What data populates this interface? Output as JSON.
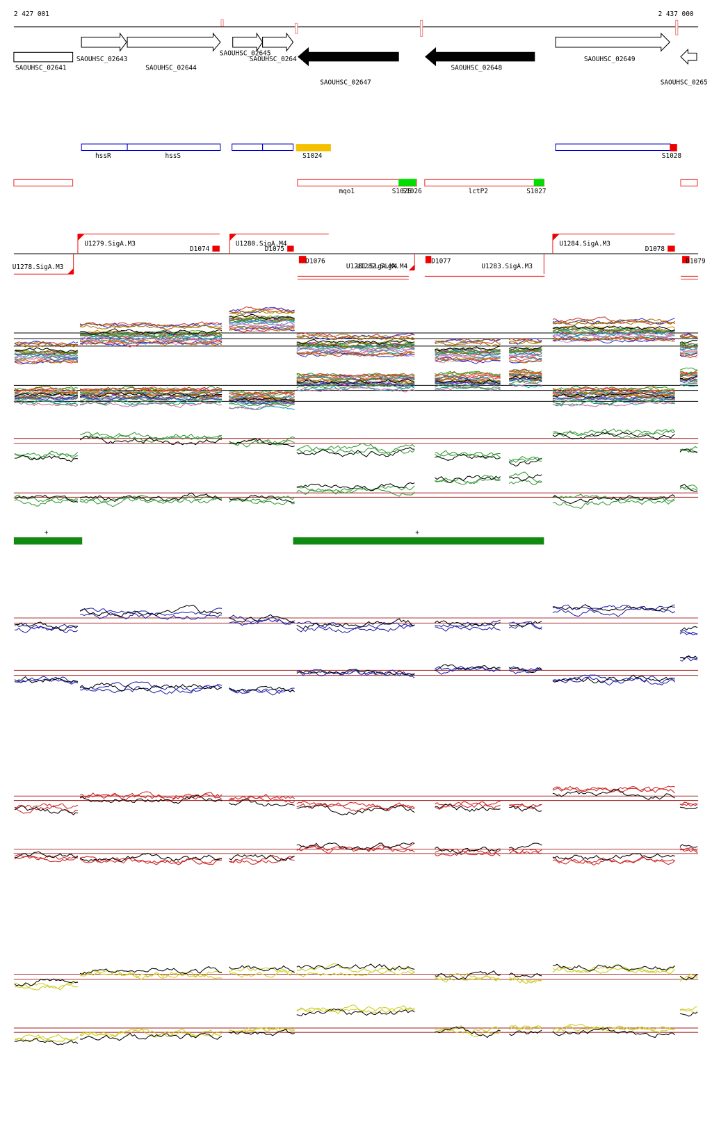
{
  "ruler": {
    "start": "2 427 001",
    "end": "2 437 000"
  },
  "genes": [
    "SAOUHSC_02641",
    "SAOUHSC_02643",
    "SAOUHSC_02644",
    "SAOUHSC_02645",
    "SAOUHSC_0264",
    "SAOUHSC_02647",
    "SAOUHSC_02648",
    "SAOUHSC_02649",
    "SAOUHSC_0265"
  ],
  "annotations": [
    "hssR",
    "hssS",
    "S1024",
    "S1028",
    "mqo1",
    "S1025",
    "S1026",
    "lctP2",
    "S1027"
  ],
  "transcripts": [
    "U1278.SigA.M3",
    "U1279.SigA.M3",
    "D1074",
    "U1280.SigA.M4",
    "D1075",
    "D1076",
    "U1281.SigA.M4",
    "U1282.SigA.M4",
    "D1077",
    "U1283.SigA.M3",
    "U1284.SigA.M3",
    "D1078",
    "D1079"
  ],
  "markers": [
    "+",
    "+"
  ]
}
